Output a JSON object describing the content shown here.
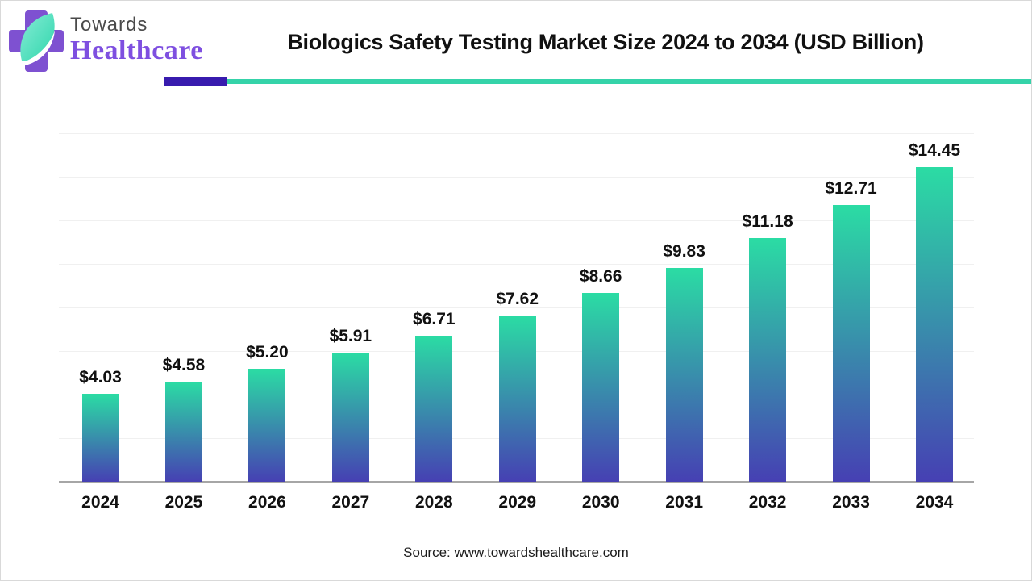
{
  "logo": {
    "line1": "Towards",
    "line2": "Healthcare"
  },
  "header": {
    "title": "Biologics Safety Testing Market Size 2024 to 2034 (USD Billion)"
  },
  "footer": {
    "source": "Source: www.towardshealthcare.com"
  },
  "colors": {
    "bar_top": "#2bdca4",
    "bar_bottom": "#4640b3",
    "accent_purple": "#381bae",
    "accent_teal": "#35d3a9",
    "logo_cross_purple": "#7e51d1",
    "logo_leaf_teal_light": "#86ecd5",
    "logo_leaf_teal_dark": "#2fd6ac",
    "logo_text_purple": "#7e4fe0",
    "grid_color": "#f0f0f0",
    "axis_color": "#a6a6a6"
  },
  "chart_data": {
    "type": "bar",
    "title": "Biologics Safety Testing Market Size 2024 to 2034 (USD Billion)",
    "categories": [
      "2024",
      "2025",
      "2026",
      "2027",
      "2028",
      "2029",
      "2030",
      "2031",
      "2032",
      "2033",
      "2034"
    ],
    "values": [
      4.03,
      4.58,
      5.2,
      5.91,
      6.71,
      7.62,
      8.66,
      9.83,
      11.18,
      12.71,
      14.45
    ],
    "labels": [
      "$4.03",
      "$4.58",
      "$5.20",
      "$5.91",
      "$6.71",
      "$7.62",
      "$8.66",
      "$9.83",
      "$11.18",
      "$12.71",
      "$14.45"
    ],
    "xlabel": "",
    "ylabel": "",
    "ylim": [
      0,
      16
    ],
    "gridline_step": 2,
    "grid": true,
    "legend": "none",
    "bar_gradient": [
      "#2bdca4",
      "#4640b3"
    ]
  }
}
